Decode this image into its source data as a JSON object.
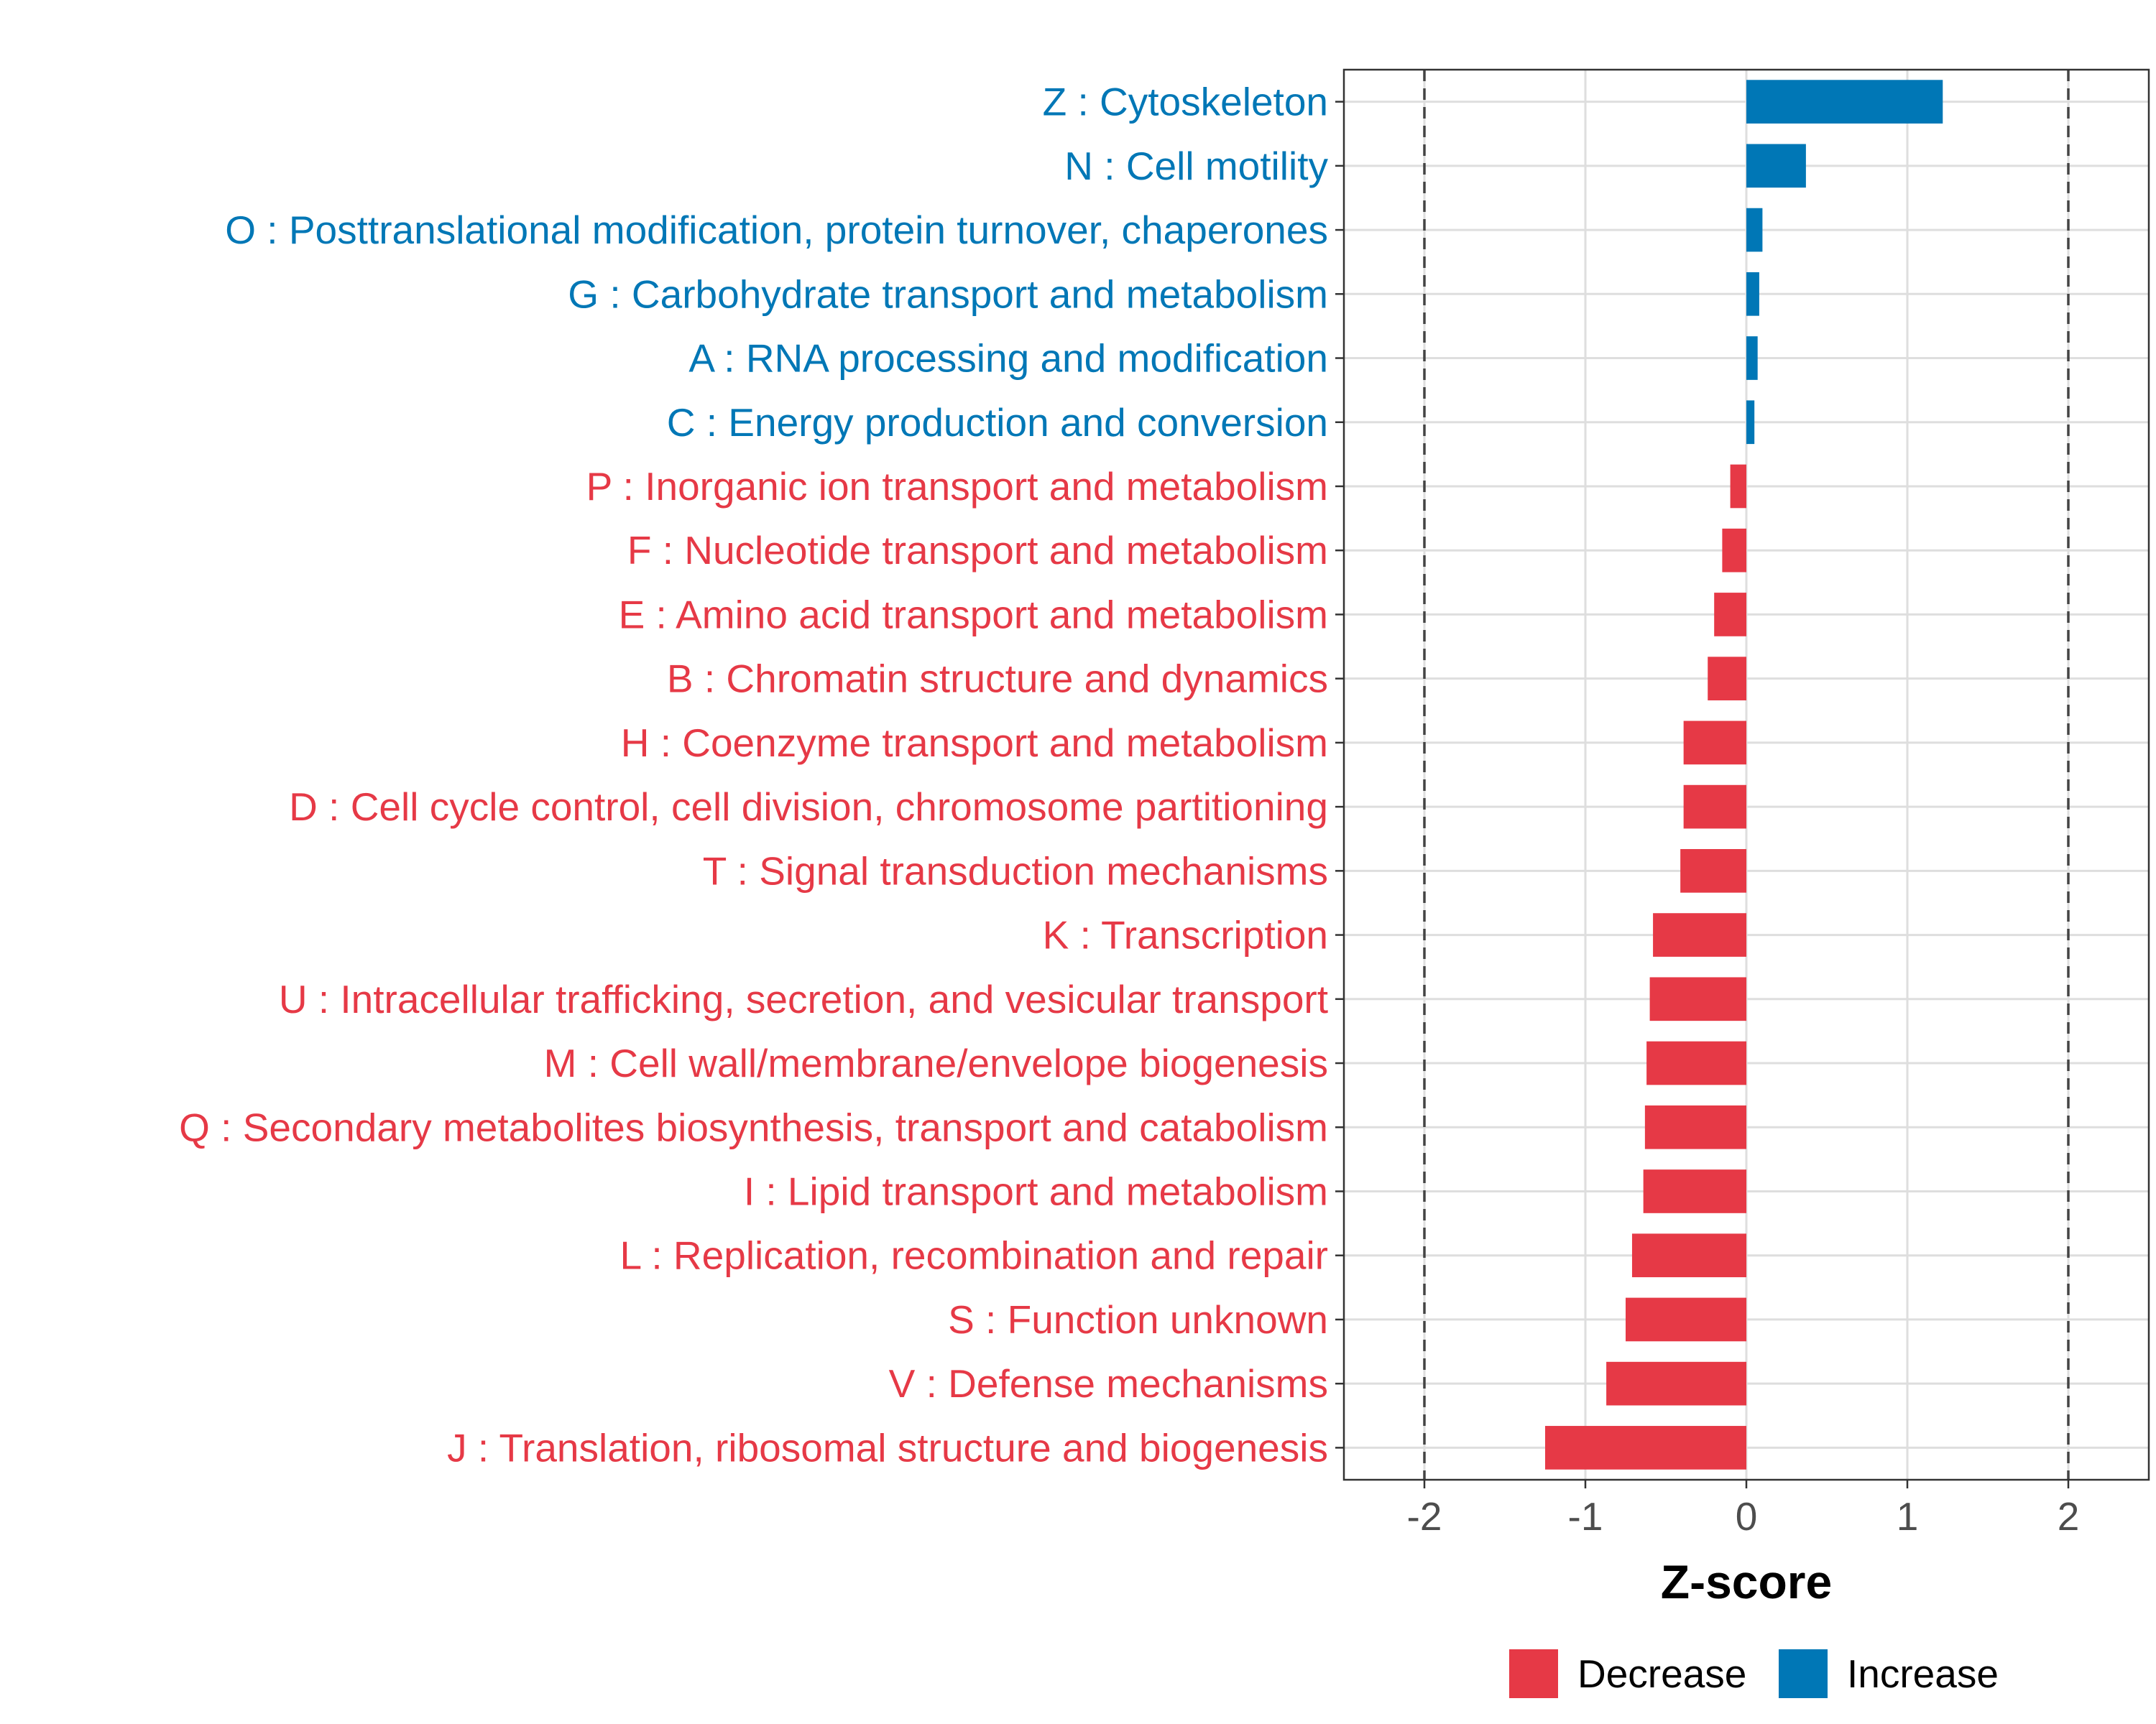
{
  "chart_data": {
    "type": "bar",
    "orientation": "horizontal",
    "title": "",
    "xlabel": "Z-score",
    "ylabel": "",
    "xlim": [
      -2.5,
      2.5
    ],
    "xticks": [
      -2,
      -1,
      0,
      1,
      2
    ],
    "xtick_labels": [
      "-2",
      "-1",
      "0",
      "1",
      "2"
    ],
    "reference_lines": [
      -2,
      2
    ],
    "grid": true,
    "categories": [
      "Z : Cytoskeleton",
      "N : Cell motility",
      "O : Posttranslational modification, protein turnover, chaperones",
      "G : Carbohydrate transport and metabolism",
      "A : RNA processing and modification",
      "C : Energy production and conversion",
      "P : Inorganic ion transport and metabolism",
      "F : Nucleotide transport and metabolism",
      "E : Amino acid transport and metabolism",
      "B : Chromatin structure and dynamics",
      "H : Coenzyme transport and metabolism",
      "D : Cell cycle control, cell division, chromosome partitioning",
      "T : Signal transduction mechanisms",
      "K : Transcription",
      "U : Intracellular trafficking, secretion, and vesicular transport",
      "M : Cell wall/membrane/envelope biogenesis",
      "Q : Secondary metabolites biosynthesis, transport and catabolism",
      "I : Lipid transport and metabolism",
      "L : Replication, recombination and repair",
      "S : Function unknown",
      "V : Defense mechanisms",
      "J : Translation, ribosomal structure and biogenesis"
    ],
    "values": [
      1.22,
      0.37,
      0.1,
      0.08,
      0.07,
      0.05,
      -0.1,
      -0.15,
      -0.2,
      -0.24,
      -0.39,
      -0.39,
      -0.41,
      -0.58,
      -0.6,
      -0.62,
      -0.63,
      -0.64,
      -0.71,
      -0.75,
      -0.87,
      -1.25
    ],
    "groups": [
      "Increase",
      "Increase",
      "Increase",
      "Increase",
      "Increase",
      "Increase",
      "Decrease",
      "Decrease",
      "Decrease",
      "Decrease",
      "Decrease",
      "Decrease",
      "Decrease",
      "Decrease",
      "Decrease",
      "Decrease",
      "Decrease",
      "Decrease",
      "Decrease",
      "Decrease",
      "Decrease",
      "Decrease"
    ],
    "legend": {
      "position": "bottom",
      "entries": [
        {
          "label": "Decrease",
          "color": "#E63946"
        },
        {
          "label": "Increase",
          "color": "#0077B6"
        }
      ]
    },
    "colors": {
      "Decrease": "#E63946",
      "Increase": "#0077B6"
    }
  }
}
